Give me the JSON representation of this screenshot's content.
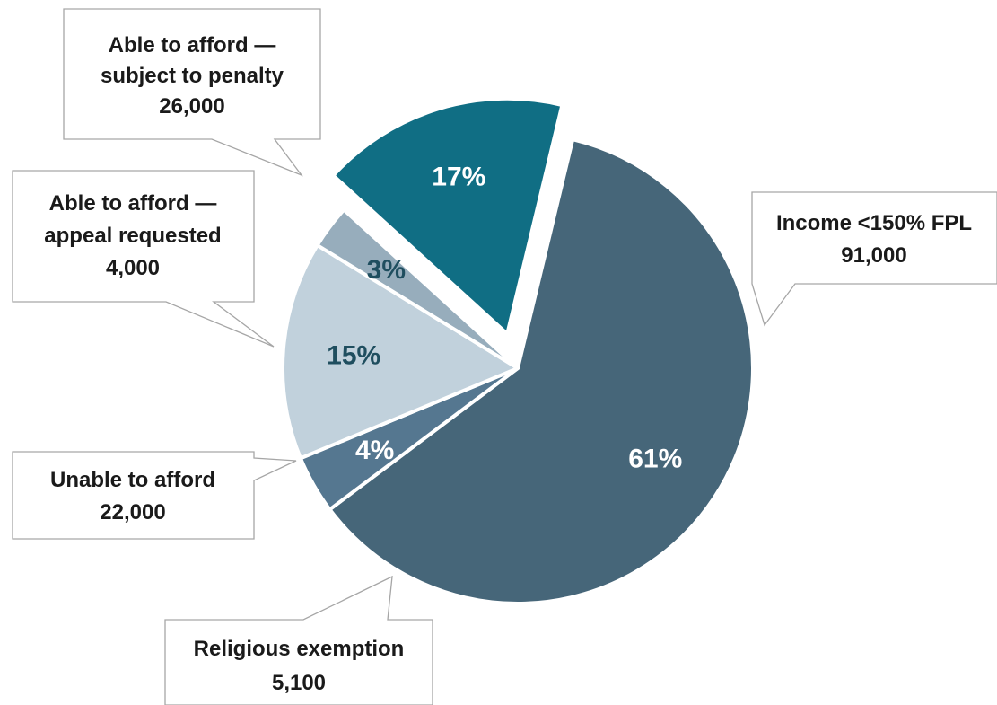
{
  "chart_data": {
    "type": "pie",
    "title": "",
    "slices": [
      {
        "label": "Income <150% FPL",
        "value_label": "91,000",
        "value": 91000,
        "percent": 61,
        "percent_label": "61%",
        "color": "#466679",
        "pct_text_color": "#ffffff",
        "exploded": false
      },
      {
        "label": "Religious exemption",
        "value_label": "5,100",
        "value": 5100,
        "percent": 4,
        "percent_label": "4%",
        "color": "#557790",
        "pct_text_color": "#ffffff",
        "exploded": false
      },
      {
        "label": "Unable to afford",
        "value_label": "22,000",
        "value": 22000,
        "percent": 15,
        "percent_label": "15%",
        "color": "#c1d1dc",
        "pct_text_color": "#1f4e5f",
        "exploded": false
      },
      {
        "label": "Able to afford — appeal requested",
        "value_label": "4,000",
        "value": 4000,
        "percent": 3,
        "percent_label": "3%",
        "color": "#97adbc",
        "pct_text_color": "#1f4e5f",
        "exploded": false
      },
      {
        "label": "Able to afford — subject to penalty",
        "value_label": "26,000",
        "value": 26000,
        "percent": 17,
        "percent_label": "17%",
        "color": "#106e84",
        "pct_text_color": "#ffffff",
        "exploded": true
      }
    ]
  },
  "callouts": {
    "income": {
      "line1": "Income <150% FPL",
      "line2": "91,000"
    },
    "religious": {
      "line1": "Religious exemption",
      "line2": "5,100"
    },
    "unable": {
      "line1": "Unable to afford",
      "line2": "22,000"
    },
    "appeal": {
      "line1": "Able to afford —",
      "line2": "appeal requested",
      "line3": "4,000"
    },
    "penalty": {
      "line1": "Able to afford —",
      "line2": "subject to penalty",
      "line3": "26,000"
    }
  }
}
